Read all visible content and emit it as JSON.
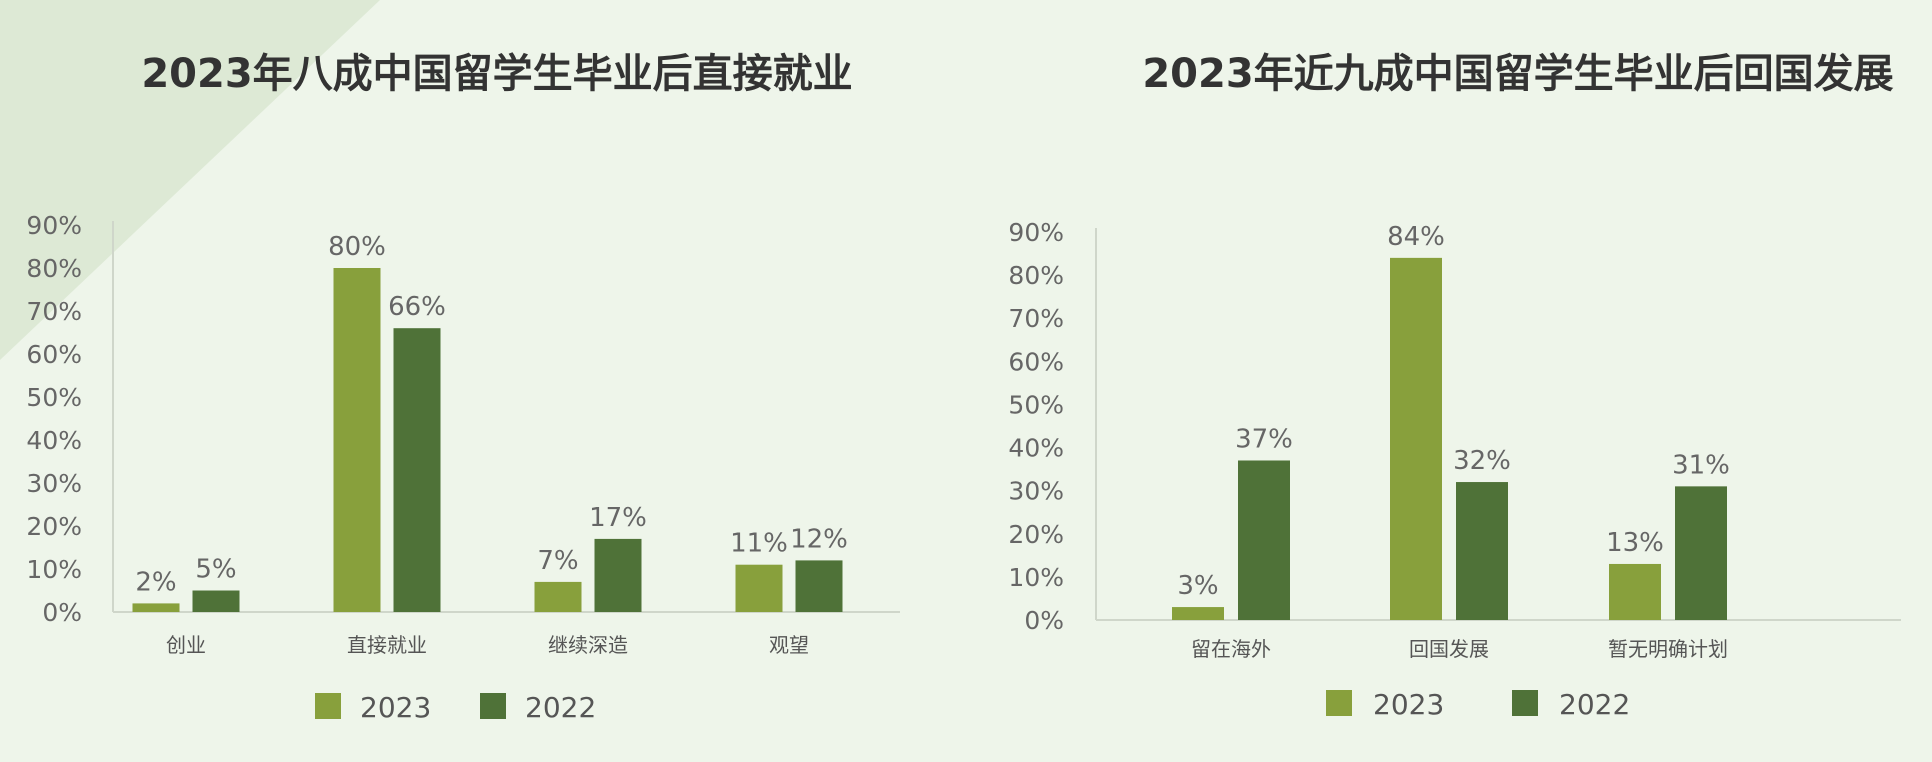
{
  "colors": {
    "series_2023": "#88a03c",
    "series_2022": "#4f7238",
    "axis": "#cfd6ca",
    "background": "#eef5ea"
  },
  "chart_data": [
    {
      "type": "bar",
      "title": "2023年八成中国留学生毕业后直接就业",
      "categories": [
        "创业",
        "直接就业",
        "继续深造",
        "观望"
      ],
      "series": [
        {
          "name": "2023",
          "values": [
            2,
            80,
            7,
            11
          ]
        },
        {
          "name": "2022",
          "values": [
            5,
            66,
            17,
            12
          ]
        }
      ],
      "ylim": [
        0,
        90
      ],
      "yticks": [
        "0%",
        "10%",
        "20%",
        "30%",
        "40%",
        "50%",
        "60%",
        "70%",
        "80%",
        "90%"
      ],
      "value_suffix": "%",
      "legend": "bottom",
      "grid": false
    },
    {
      "type": "bar",
      "title": "2023年近九成中国留学生毕业后回国发展",
      "categories": [
        "留在海外",
        "回国发展",
        "暂无明确计划"
      ],
      "series": [
        {
          "name": "2023",
          "values": [
            3,
            84,
            13
          ]
        },
        {
          "name": "2022",
          "values": [
            37,
            32,
            31
          ]
        }
      ],
      "ylim": [
        0,
        90
      ],
      "yticks": [
        "0%",
        "10%",
        "20%",
        "30%",
        "40%",
        "50%",
        "60%",
        "70%",
        "80%",
        "90%"
      ],
      "value_suffix": "%",
      "legend": "bottom",
      "grid": false
    }
  ]
}
